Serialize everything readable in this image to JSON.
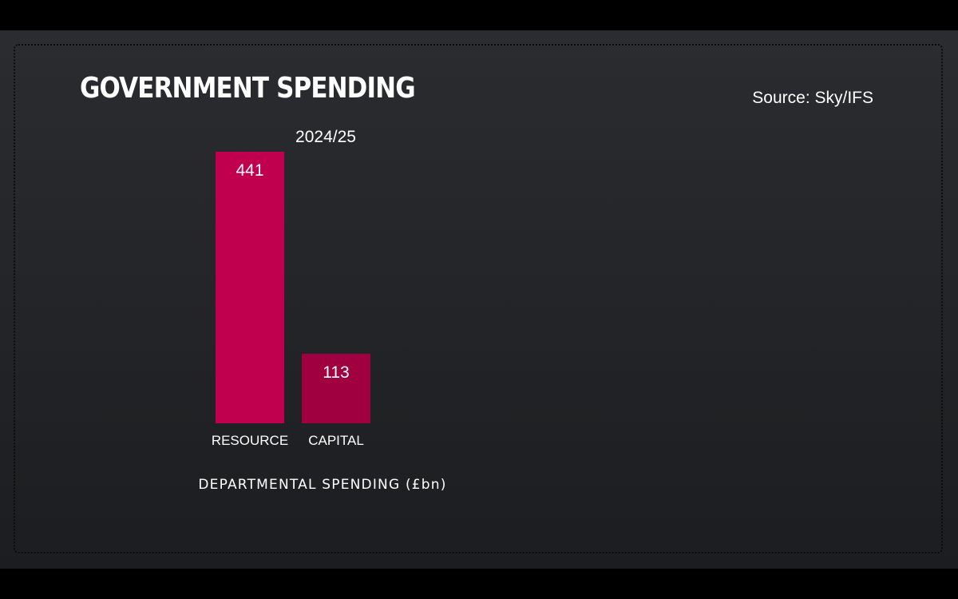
{
  "title": "GOVERNMENT SPENDING",
  "source": "Source: Sky/IFS",
  "colors": {
    "resource": "#c0004f",
    "capital": "#a0003f",
    "background": "#232427"
  },
  "chart_data": {
    "type": "bar",
    "title": "GOVERNMENT SPENDING",
    "subtitle": "2024/25",
    "categories": [
      "RESOURCE",
      "CAPITAL"
    ],
    "values": [
      441,
      113
    ],
    "data_labels": [
      "441",
      "113"
    ],
    "xlabel": "DEPARTMENTAL SPENDING (£bn)",
    "ylabel": "",
    "ylim": [
      0,
      441
    ],
    "grid": false,
    "legend": "none"
  }
}
